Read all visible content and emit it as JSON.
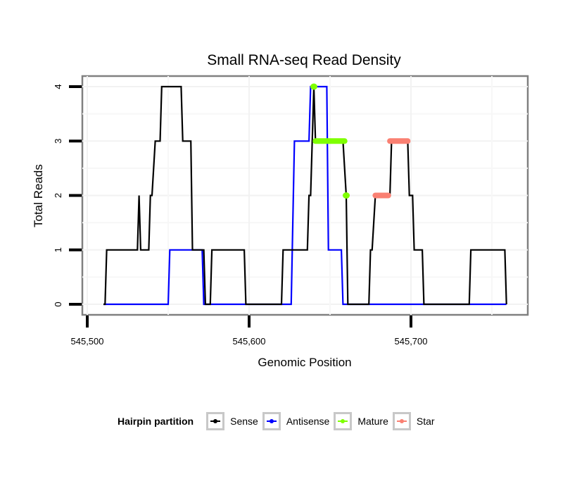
{
  "chart_data": {
    "type": "line",
    "title": "Small RNA-seq Read Density",
    "xlabel": "Genomic Position",
    "ylabel": "Total Reads",
    "xlim": [
      545490,
      545772
    ],
    "ylim": [
      -0.18,
      4.18
    ],
    "xticks": [
      545500,
      545600,
      545700
    ],
    "xtick_labels": [
      "545,500",
      "545,600",
      "545,700"
    ],
    "yticks": [
      0,
      1,
      2,
      3,
      4
    ],
    "ytick_labels": [
      "0",
      "1",
      "2",
      "3",
      "4"
    ],
    "grid": true,
    "legend_position": "bottom",
    "legend_title": "Hairpin partition",
    "series": [
      {
        "name": "Sense",
        "color": "#000000",
        "x": [
          545510,
          545511,
          545512,
          545531,
          545532,
          545533,
          545538,
          545539,
          545540,
          545542,
          545545,
          545546,
          545558,
          545559,
          545564,
          545565,
          545572,
          545573,
          545576,
          545577,
          545597,
          545598,
          545620,
          545621,
          545636,
          545637,
          545638,
          545640,
          545641,
          545658,
          545660,
          545661,
          545674,
          545675,
          545676,
          545678,
          545687,
          545688,
          545698,
          545699,
          545701,
          545702,
          545707,
          545708,
          545736,
          545737,
          545758,
          545759
        ],
        "y": [
          0,
          0,
          1,
          1,
          2,
          1,
          1,
          2,
          2,
          3,
          3,
          4,
          4,
          3,
          3,
          1,
          1,
          0,
          0,
          1,
          1,
          0,
          0,
          1,
          1,
          2,
          2,
          4,
          3,
          3,
          2,
          0,
          0,
          1,
          1,
          2,
          2,
          3,
          3,
          2,
          2,
          1,
          1,
          0,
          0,
          1,
          1,
          0
        ]
      },
      {
        "name": "Antisense",
        "color": "#0000ff",
        "x": [
          545510,
          545550,
          545551,
          545571,
          545572,
          545626,
          545628,
          545637,
          545638,
          545648,
          545649,
          545657,
          545658,
          545759
        ],
        "y": [
          0,
          0,
          1,
          1,
          0,
          0,
          3,
          3,
          4,
          4,
          1,
          1,
          0,
          0
        ]
      },
      {
        "name": "Mature",
        "color": "#7fff00",
        "segments": [
          {
            "x": [
              545640,
              545640
            ],
            "y": [
              4,
              4
            ]
          },
          {
            "x": [
              545641,
              545659
            ],
            "y": [
              3,
              3
            ]
          },
          {
            "x": [
              545660,
              545660
            ],
            "y": [
              2,
              2
            ]
          }
        ]
      },
      {
        "name": "Star",
        "color": "#fa8072",
        "segments": [
          {
            "x": [
              545678,
              545686
            ],
            "y": [
              2,
              2
            ]
          },
          {
            "x": [
              545687,
              545698
            ],
            "y": [
              3,
              3
            ]
          }
        ]
      }
    ]
  }
}
